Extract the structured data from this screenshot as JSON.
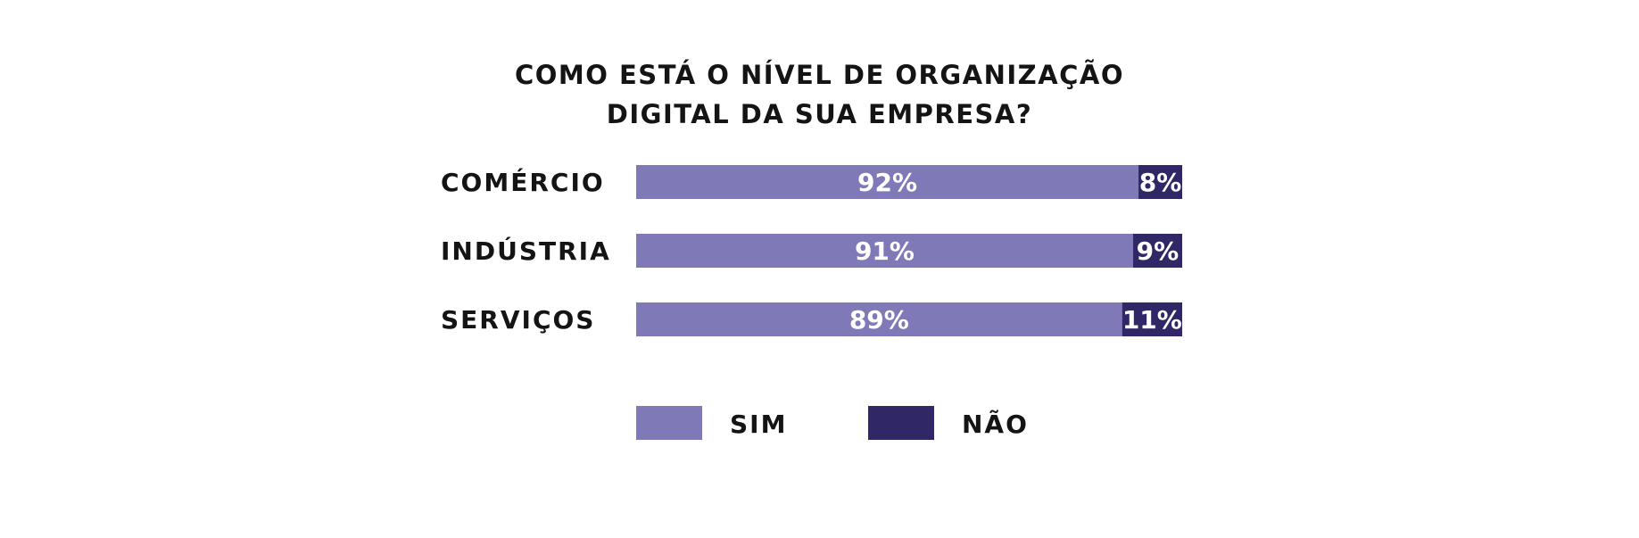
{
  "chart_data": {
    "type": "bar",
    "orientation": "horizontal",
    "stacked": true,
    "title_lines": [
      "COMO ESTÁ O NÍVEL DE ORGANIZAÇÃO",
      "DIGITAL DA SUA EMPRESA?"
    ],
    "categories": [
      "COMÉRCIO",
      "INDÚSTRIA",
      "SERVIÇOS"
    ],
    "series": [
      {
        "name": "SIM",
        "values": [
          92,
          91,
          89
        ],
        "labels": [
          "92%",
          "91%",
          "89%"
        ],
        "color": "#8079b8"
      },
      {
        "name": "NÃO",
        "values": [
          8,
          9,
          11
        ],
        "labels": [
          "8%",
          "9%",
          "11%"
        ],
        "color": "#2f2766"
      }
    ],
    "xlim": [
      0,
      100
    ],
    "grid": false,
    "legend_position": "bottom"
  }
}
